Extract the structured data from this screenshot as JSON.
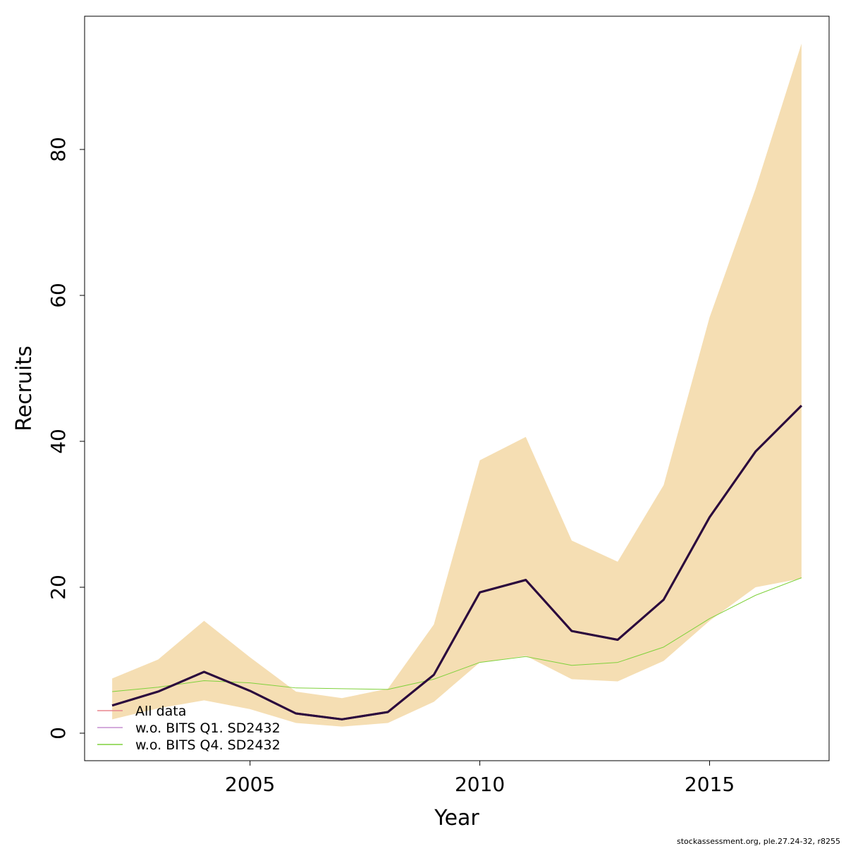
{
  "chart_data": {
    "type": "line",
    "x_label": "Year",
    "y_label": "Recruits",
    "footer": "stockassessment.org, ple.27.24-32, r8255",
    "x": [
      2002,
      2003,
      2004,
      2005,
      2006,
      2007,
      2008,
      2009,
      2010,
      2011,
      2012,
      2013,
      2014,
      2015,
      2016,
      2017
    ],
    "band": {
      "color": "#f5deb3",
      "lower": [
        1.9,
        3.4,
        4.5,
        3.3,
        1.4,
        0.9,
        1.4,
        4.3,
        9.7,
        10.6,
        7.4,
        7.1,
        9.9,
        15.4,
        20.0,
        21.2
      ],
      "upper": [
        7.5,
        10.1,
        15.4,
        10.4,
        5.7,
        4.8,
        6.1,
        14.9,
        37.4,
        40.6,
        26.4,
        23.5,
        34.0,
        57.0,
        74.6,
        94.5
      ]
    },
    "series": [
      {
        "name": "All data",
        "color": "#2b0a3d",
        "legend_color": "#e8868e",
        "values": [
          3.8,
          5.7,
          8.4,
          5.8,
          2.7,
          1.9,
          2.9,
          8.0,
          19.3,
          21.0,
          14.0,
          12.8,
          18.3,
          29.6,
          38.6,
          44.9
        ]
      },
      {
        "name": "w.o. BITS Q1. SD2432",
        "color": "#2b0a3d",
        "legend_color": "#c58fd1",
        "values": [
          3.8,
          5.7,
          8.4,
          5.8,
          2.7,
          1.9,
          2.9,
          8.0,
          19.3,
          21.0,
          14.0,
          12.8,
          18.3,
          29.6,
          38.6,
          44.9
        ]
      },
      {
        "name": "w.o. BITS Q4. SD2432",
        "color": "#7fd13b",
        "legend_color": "#7fd13b",
        "values": [
          5.7,
          6.3,
          7.2,
          6.9,
          6.2,
          6.1,
          6.0,
          7.4,
          9.7,
          10.5,
          9.3,
          9.7,
          11.8,
          15.7,
          18.9,
          21.3
        ]
      }
    ],
    "xlim": [
      2001.4,
      2017.6
    ],
    "xticks": [
      2005,
      2010,
      2015
    ],
    "ylim": [
      -3.77,
      98.26
    ],
    "yticks": [
      0,
      20,
      40,
      60,
      80
    ],
    "legend": "bottomleft"
  }
}
